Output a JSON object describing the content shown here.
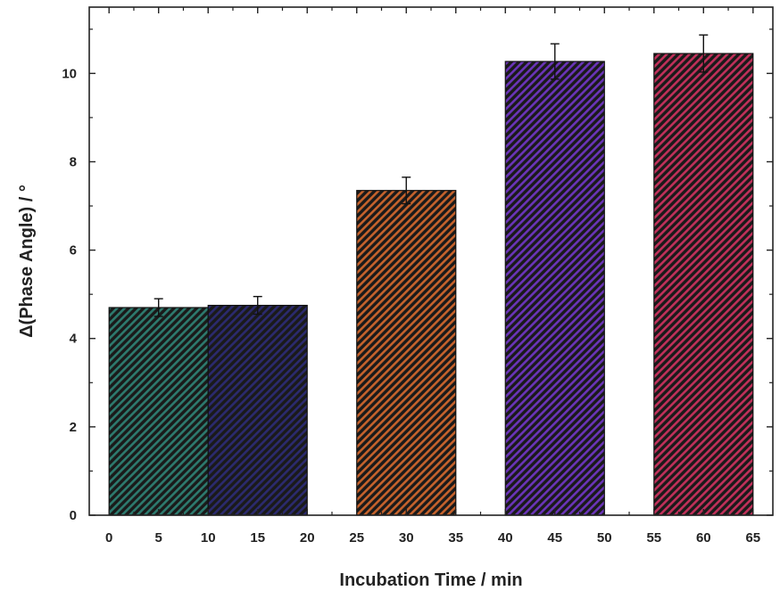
{
  "chart_data": {
    "type": "bar",
    "title": "",
    "xlabel": "Incubation Time / min",
    "ylabel": "Δ(Phase Angle) / °",
    "xlim": [
      -2,
      67
    ],
    "ylim": [
      0,
      11.5
    ],
    "xticks": [
      "0",
      "5",
      "10",
      "15",
      "20",
      "25",
      "30",
      "35",
      "40",
      "45",
      "50",
      "55",
      "60",
      "65"
    ],
    "yticks": [
      "0",
      "2",
      "4",
      "6",
      "8",
      "10"
    ],
    "grid": false,
    "legend": "none",
    "bar_width": 10,
    "series": [
      {
        "x": [
          5,
          15,
          30,
          45,
          60
        ],
        "values": [
          4.7,
          4.75,
          7.35,
          10.27,
          10.45
        ],
        "errors": [
          0.2,
          0.2,
          0.3,
          0.4,
          0.42
        ],
        "colors": [
          "#2d7a6e",
          "#2b2a6e",
          "#c5622c",
          "#6a34b8",
          "#c0305a"
        ]
      }
    ]
  }
}
